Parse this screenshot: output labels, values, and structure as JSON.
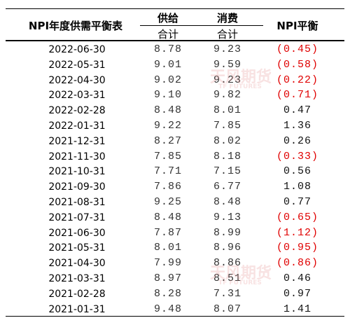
{
  "header": {
    "title": "NPI年度供需平衡表",
    "supply": [
      "供给",
      "合计"
    ],
    "demand": [
      "消费",
      "合计"
    ],
    "balance": "NPI平衡"
  },
  "table": {
    "rows": [
      [
        "2022-06-30",
        "8.78",
        "9.23",
        "(0.45)"
      ],
      [
        "2022-05-31",
        "9.01",
        "9.59",
        "(0.58)"
      ],
      [
        "2022-04-30",
        "9.02",
        "9.23",
        "(0.22)"
      ],
      [
        "2022-03-31",
        "9.10",
        "9.82",
        "(0.71)"
      ],
      [
        "2022-02-28",
        "8.48",
        "8.01",
        "0.47"
      ],
      [
        "2022-01-31",
        "9.22",
        "7.85",
        "1.36"
      ],
      [
        "2021-12-31",
        "8.27",
        "8.02",
        "0.26"
      ],
      [
        "2021-11-30",
        "7.85",
        "8.18",
        "(0.33)"
      ],
      [
        "2021-10-31",
        "7.71",
        "7.15",
        "0.56"
      ],
      [
        "2021-09-30",
        "7.86",
        "6.77",
        "1.08"
      ],
      [
        "2021-08-31",
        "9.25",
        "8.48",
        "0.77"
      ],
      [
        "2021-07-31",
        "8.48",
        "9.13",
        "(0.65)"
      ],
      [
        "2021-06-30",
        "7.87",
        "8.99",
        "(1.12)"
      ],
      [
        "2021-05-31",
        "8.01",
        "8.96",
        "(0.95)"
      ],
      [
        "2021-04-30",
        "7.99",
        "8.86",
        "(0.86)"
      ],
      [
        "2021-03-31",
        "8.97",
        "8.51",
        "0.46"
      ],
      [
        "2021-02-28",
        "8.28",
        "7.31",
        "0.97"
      ],
      [
        "2021-01-31",
        "9.48",
        "8.07",
        "1.41"
      ]
    ]
  },
  "watermarks": [
    [
      "天风期货",
      "TF FUTURES"
    ],
    [
      "天风期货",
      "TF FUTURES"
    ]
  ]
}
